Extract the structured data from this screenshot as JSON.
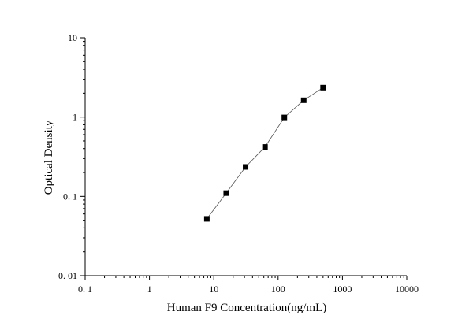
{
  "chart_data": {
    "type": "scatter",
    "xlabel": "Human F9 Concentration(ng/mL)",
    "ylabel": "Optical Density",
    "xscale": "log",
    "yscale": "log",
    "xlim": [
      0.1,
      10000
    ],
    "ylim": [
      0.01,
      10
    ],
    "x_ticks": [
      {
        "value": 0.1,
        "label": "0. 1"
      },
      {
        "value": 1,
        "label": "1"
      },
      {
        "value": 10,
        "label": "10"
      },
      {
        "value": 100,
        "label": "100"
      },
      {
        "value": 1000,
        "label": "1000"
      },
      {
        "value": 10000,
        "label": "10000"
      }
    ],
    "y_ticks": [
      {
        "value": 0.01,
        "label": "0. 01"
      },
      {
        "value": 0.1,
        "label": "0. 1"
      },
      {
        "value": 1,
        "label": "1"
      },
      {
        "value": 10,
        "label": "10"
      }
    ],
    "grid": false,
    "series": [
      {
        "marker": "square",
        "color": "#000000",
        "line_color": "#555555",
        "connected": true,
        "x": [
          7.8,
          15.6,
          31.2,
          62.5,
          125,
          250,
          500
        ],
        "y": [
          0.052,
          0.11,
          0.235,
          0.42,
          0.99,
          1.63,
          2.35
        ]
      }
    ]
  }
}
